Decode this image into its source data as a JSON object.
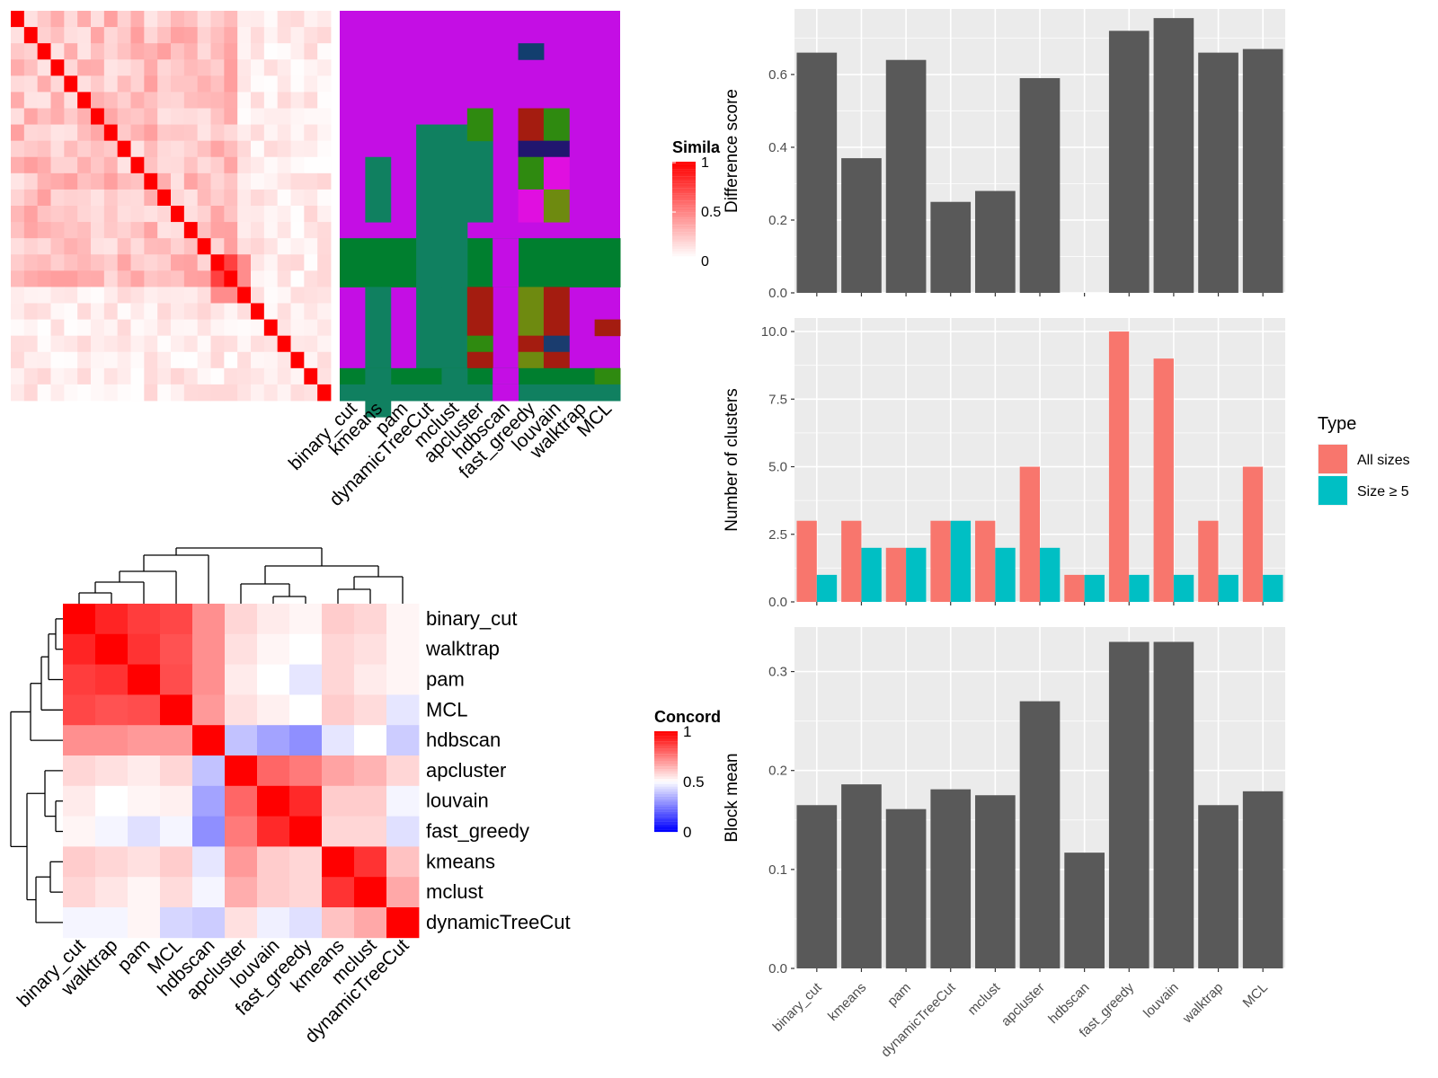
{
  "similarity_heatmap": {
    "legend_title": "Simila",
    "legend_ticks": [
      "1",
      "0.5",
      "0"
    ],
    "method_labels": [
      "binary_cut",
      "kmeans",
      "pam",
      "dynamicTreeCut",
      "mclust",
      "apcluster",
      "hdbscan",
      "fast_greedy",
      "louvain",
      "walktrap",
      "MCL"
    ],
    "colors": {
      "high": "#ff0000",
      "low": "#ffffff"
    }
  },
  "cluster_assignment_grid": {
    "colors": {
      "magenta": "#c40ee4",
      "teal": "#108060",
      "green": "#007f2f",
      "darkred": "#a41c10",
      "lime": "#2f8a10",
      "olive": "#6e8a10",
      "navy": "#21166f",
      "steel": "#1a3c6e",
      "pink": "#e00fe0",
      "darkblue": "#123e6e"
    }
  },
  "concordance_heatmap": {
    "legend_title": "Concord",
    "legend_ticks": [
      "1",
      "0.5",
      "0"
    ],
    "row_labels": [
      "binary_cut",
      "walktrap",
      "pam",
      "MCL",
      "hdbscan",
      "apcluster",
      "louvain",
      "fast_greedy",
      "kmeans",
      "mclust",
      "dynamicTreeCut"
    ],
    "col_labels": [
      "binary_cut",
      "walktrap",
      "pam",
      "MCL",
      "hdbscan",
      "apcluster",
      "louvain",
      "fast_greedy",
      "kmeans",
      "mclust",
      "dynamicTreeCut"
    ],
    "colors": {
      "high": "#ff0000",
      "mid": "#ffffff",
      "low": "#0000ff"
    }
  },
  "chart_data": [
    {
      "type": "bar",
      "ylabel": "Difference score",
      "categories": [
        "binary_cut",
        "kmeans",
        "pam",
        "dynamicTreeCut",
        "mclust",
        "apcluster",
        "hdbscan",
        "fast_greedy",
        "louvain",
        "walktrap",
        "MCL"
      ],
      "values": [
        0.66,
        0.37,
        0.64,
        0.25,
        0.28,
        0.59,
        0,
        0.72,
        0.755,
        0.66,
        0.67
      ],
      "ylim": [
        0,
        0.78
      ],
      "yticks": [
        "0.0",
        "0.2",
        "0.4",
        "0.6"
      ],
      "bar_color": "#595959"
    },
    {
      "type": "bar",
      "ylabel": "Number of clusters",
      "categories": [
        "binary_cut",
        "kmeans",
        "pam",
        "dynamicTreeCut",
        "mclust",
        "apcluster",
        "hdbscan",
        "fast_greedy",
        "louvain",
        "walktrap",
        "MCL"
      ],
      "series": [
        {
          "name": "All sizes",
          "values": [
            3,
            3,
            2,
            3,
            3,
            5,
            1,
            10,
            9,
            3,
            5
          ],
          "color": "#f8766d"
        },
        {
          "name": "Size ≥ 5",
          "values": [
            1,
            2,
            2,
            3,
            2,
            2,
            1,
            1,
            1,
            1,
            1
          ],
          "color": "#00bfc4"
        }
      ],
      "ylim": [
        0,
        10.5
      ],
      "yticks": [
        "0.0",
        "2.5",
        "5.0",
        "7.5",
        "10.0"
      ],
      "legend_title": "Type",
      "legend_position": "right"
    },
    {
      "type": "bar",
      "ylabel": "Block mean",
      "categories": [
        "binary_cut",
        "kmeans",
        "pam",
        "dynamicTreeCut",
        "mclust",
        "apcluster",
        "hdbscan",
        "fast_greedy",
        "louvain",
        "walktrap",
        "MCL"
      ],
      "values": [
        0.165,
        0.186,
        0.161,
        0.181,
        0.175,
        0.27,
        0.117,
        0.33,
        0.33,
        0.165,
        0.179
      ],
      "ylim": [
        0,
        0.345
      ],
      "yticks": [
        "0.0",
        "0.1",
        "0.2",
        "0.3"
      ],
      "bar_color": "#595959"
    }
  ]
}
